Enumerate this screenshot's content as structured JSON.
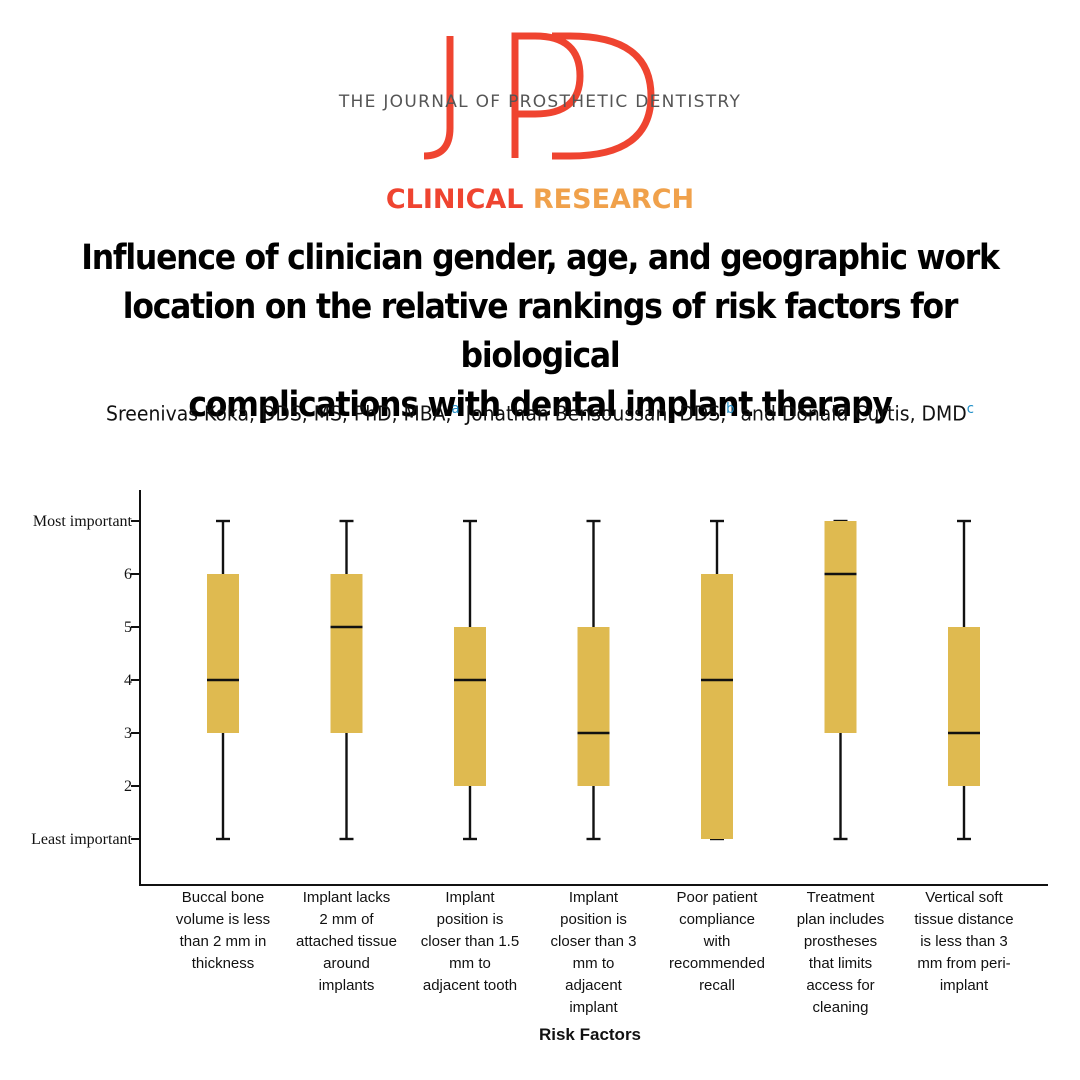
{
  "header": {
    "logo_letters": [
      "J",
      "P",
      "D"
    ],
    "journal_name": "THE JOURNAL OF PROSTHETIC DENTISTRY",
    "section_word1": "CLINICAL",
    "section_word2": "RESEARCH",
    "title_lines": [
      "Influence of clinician gender, age, and geographic work",
      "location on the relative rankings of risk factors for biological",
      "complications with dental implant therapy"
    ],
    "authors": [
      {
        "name": "Sreenivas Koka, DDS, MS, PhD, MBA,",
        "sup": "a"
      },
      {
        "name": "Jonathan Bensoussan, DDS,",
        "sup": "b"
      },
      {
        "name": "and Donald Curtis, DMD",
        "sup": "c"
      }
    ]
  },
  "colors": {
    "logo": "#ef4430",
    "section_word1": "#ef4430",
    "section_word2": "#f0a14b",
    "box_fill": "#dfba50",
    "author_sup": "#1f8fc8"
  },
  "chart_data": {
    "type": "boxplot",
    "xlabel": "Risk Factors",
    "ylabel": "",
    "ylim": [
      1,
      7
    ],
    "y_ticks": [
      {
        "value": 7,
        "label": "Most important"
      },
      {
        "value": 6,
        "label": "6"
      },
      {
        "value": 5,
        "label": "5"
      },
      {
        "value": 4,
        "label": "4"
      },
      {
        "value": 3,
        "label": "3"
      },
      {
        "value": 2,
        "label": "2"
      },
      {
        "value": 1,
        "label": "Least important"
      }
    ],
    "grid": false,
    "categories": [
      "Buccal bone volume is less than 2 mm in thickness",
      "Implant lacks 2 mm of attached tissue around implants",
      "Implant position is closer than 1.5 mm to adjacent tooth",
      "Implant position is closer than 3 mm to adjacent implant",
      "Poor patient compliance with recommended recall",
      "Treatment plan includes prostheses that limits access for cleaning",
      "Vertical soft tissue distance is less than 3 mm from peri-implant"
    ],
    "category_lines": [
      [
        "Buccal bone",
        "volume is less",
        "than 2 mm in",
        "thickness"
      ],
      [
        "Implant lacks",
        "2 mm of",
        "attached tissue",
        "around",
        "implants"
      ],
      [
        "Implant",
        "position is",
        "closer than 1.5",
        "mm to",
        "adjacent tooth"
      ],
      [
        "Implant",
        "position is",
        "closer than 3",
        "mm to",
        "adjacent",
        "implant"
      ],
      [
        "Poor patient",
        "compliance",
        "with",
        "recommended",
        "recall"
      ],
      [
        "Treatment",
        "plan includes",
        "prostheses",
        "that limits",
        "access for",
        "cleaning"
      ],
      [
        "Vertical soft",
        "tissue distance",
        "is less than 3",
        "mm from peri-",
        "implant"
      ]
    ],
    "boxes": [
      {
        "min": 1,
        "q1": 3,
        "median": 4,
        "q3": 6,
        "max": 7
      },
      {
        "min": 1,
        "q1": 3,
        "median": 5,
        "q3": 6,
        "max": 7
      },
      {
        "min": 1,
        "q1": 2,
        "median": 4,
        "q3": 5,
        "max": 7
      },
      {
        "min": 1,
        "q1": 2,
        "median": 3,
        "q3": 5,
        "max": 7
      },
      {
        "min": 1,
        "q1": 1,
        "median": 4,
        "q3": 6,
        "max": 7
      },
      {
        "min": 1,
        "q1": 3,
        "median": 6,
        "q3": 7,
        "max": 7
      },
      {
        "min": 1,
        "q1": 2,
        "median": 3,
        "q3": 5,
        "max": 7
      }
    ]
  }
}
